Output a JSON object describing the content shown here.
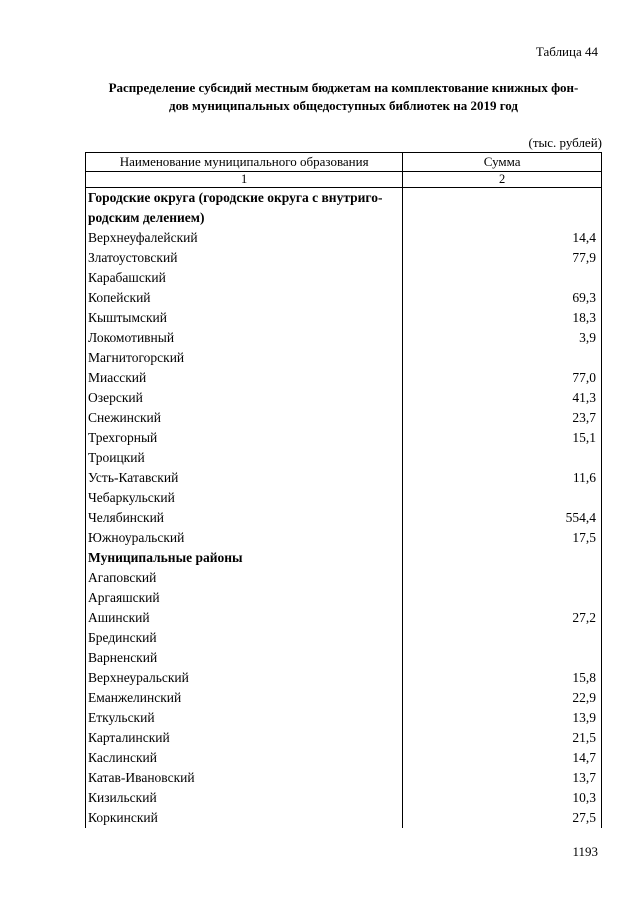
{
  "page": {
    "table_label": "Таблица 44",
    "title_line1": "Распределение субсидий местным бюджетам на комплектование книжных фон-",
    "title_line2": "дов муниципальных общедоступных библиотек на 2019 год",
    "units_note": "(тыс. рублей)",
    "page_number": "1193"
  },
  "table": {
    "headers": {
      "name": "Наименование муниципального образования",
      "value": "Сумма"
    },
    "col_numbers": {
      "name": "1",
      "value": "2"
    },
    "rows": [
      {
        "name": "Городские округа (городские округа с внутриго-\nродским делением)",
        "value": "",
        "bold": true
      },
      {
        "name": "Верхнеуфалейский",
        "value": "14,4",
        "bold": false
      },
      {
        "name": "Златоустовский",
        "value": "77,9",
        "bold": false
      },
      {
        "name": "Карабашский",
        "value": "",
        "bold": false
      },
      {
        "name": "Копейский",
        "value": "69,3",
        "bold": false
      },
      {
        "name": "Кыштымский",
        "value": "18,3",
        "bold": false
      },
      {
        "name": "Локомотивный",
        "value": "3,9",
        "bold": false
      },
      {
        "name": "Магнитогорский",
        "value": "",
        "bold": false
      },
      {
        "name": "Миасский",
        "value": "77,0",
        "bold": false
      },
      {
        "name": "Озерский",
        "value": "41,3",
        "bold": false
      },
      {
        "name": "Снежинский",
        "value": "23,7",
        "bold": false
      },
      {
        "name": "Трехгорный",
        "value": "15,1",
        "bold": false
      },
      {
        "name": "Троицкий",
        "value": "",
        "bold": false
      },
      {
        "name": "Усть-Катавский",
        "value": "11,6",
        "bold": false
      },
      {
        "name": "Чебаркульский",
        "value": "",
        "bold": false
      },
      {
        "name": "Челябинский",
        "value": "554,4",
        "bold": false
      },
      {
        "name": "Южноуральский",
        "value": "17,5",
        "bold": false
      },
      {
        "name": "Муниципальные районы",
        "value": "",
        "bold": true
      },
      {
        "name": "Агаповский",
        "value": "",
        "bold": false
      },
      {
        "name": "Аргаяшский",
        "value": "",
        "bold": false
      },
      {
        "name": "Ашинский",
        "value": "27,2",
        "bold": false
      },
      {
        "name": "Брединский",
        "value": "",
        "bold": false
      },
      {
        "name": "Варненский",
        "value": "",
        "bold": false
      },
      {
        "name": "Верхнеуральский",
        "value": "15,8",
        "bold": false
      },
      {
        "name": "Еманжелинский",
        "value": "22,9",
        "bold": false
      },
      {
        "name": "Еткульский",
        "value": "13,9",
        "bold": false
      },
      {
        "name": "Карталинский",
        "value": "21,5",
        "bold": false
      },
      {
        "name": "Каслинский",
        "value": "14,7",
        "bold": false
      },
      {
        "name": "Катав-Ивановский",
        "value": "13,7",
        "bold": false
      },
      {
        "name": "Кизильский",
        "value": "10,3",
        "bold": false
      },
      {
        "name": "Коркинский",
        "value": "27,5",
        "bold": false
      }
    ]
  }
}
